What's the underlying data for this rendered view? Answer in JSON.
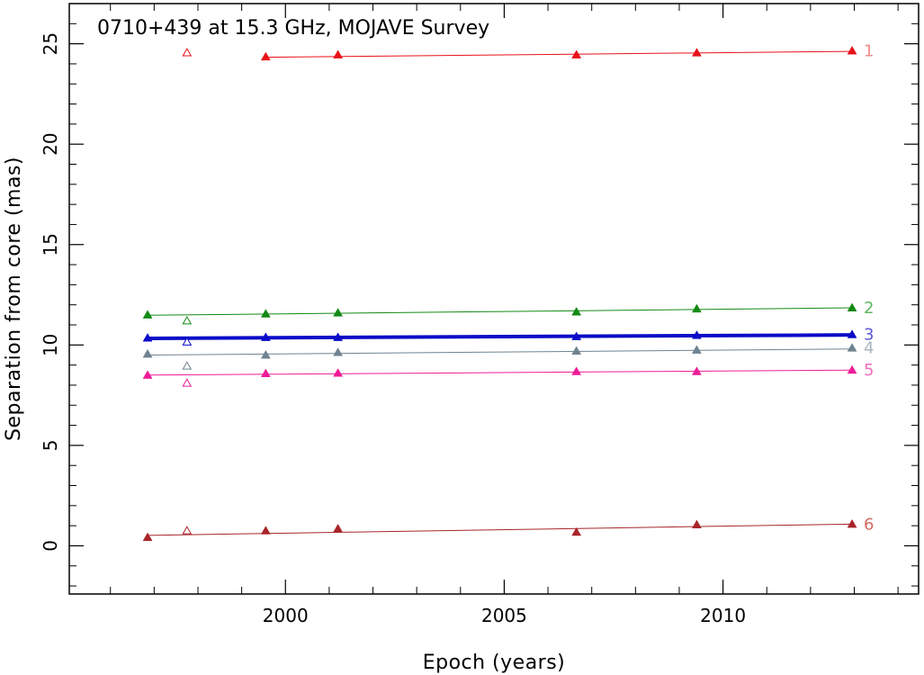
{
  "chart_data": {
    "type": "scatter",
    "title": "0710+439 at 15.3 GHz, MOJAVE Survey",
    "xlabel": "Epoch (years)",
    "ylabel": "Separation from core (mas)",
    "xlim": [
      1995.06,
      2014.47
    ],
    "ylim": [
      -2.4,
      27.0
    ],
    "x_ticks": [
      2000,
      2005,
      2010
    ],
    "y_ticks": [
      0,
      5,
      10,
      15,
      20,
      25
    ],
    "grid": false,
    "series": [
      {
        "name": "1",
        "color": "#e8111a",
        "label_color": "#f28a8a",
        "line_width": 1,
        "points": [
          [
            1999.55,
            24.35
          ],
          [
            2001.2,
            24.45
          ],
          [
            2006.65,
            24.45
          ],
          [
            2009.4,
            24.55
          ],
          [
            2012.95,
            24.65
          ]
        ],
        "open_points": [
          [
            1997.75,
            24.55
          ]
        ],
        "fit": [
          [
            1999.55,
            24.33
          ],
          [
            2012.95,
            24.62
          ]
        ]
      },
      {
        "name": "2",
        "color": "#138a13",
        "label_color": "#5cb85c",
        "line_width": 1,
        "points": [
          [
            1996.85,
            11.5
          ],
          [
            1999.55,
            11.55
          ],
          [
            2001.2,
            11.6
          ],
          [
            2006.65,
            11.65
          ],
          [
            2009.4,
            11.8
          ],
          [
            2012.95,
            11.85
          ]
        ],
        "open_points": [
          [
            1997.75,
            11.2
          ]
        ],
        "fit": [
          [
            1996.85,
            11.48
          ],
          [
            2012.95,
            11.85
          ]
        ]
      },
      {
        "name": "3",
        "color": "#0b0bc8",
        "label_color": "#5a5ad8",
        "line_width": 4,
        "points": [
          [
            1996.85,
            10.35
          ],
          [
            1999.55,
            10.38
          ],
          [
            2001.2,
            10.38
          ],
          [
            2006.65,
            10.42
          ],
          [
            2009.4,
            10.48
          ],
          [
            2012.95,
            10.52
          ]
        ],
        "open_points": [
          [
            1997.75,
            10.15
          ]
        ],
        "fit": [
          [
            1996.85,
            10.33
          ],
          [
            2012.95,
            10.5
          ]
        ]
      },
      {
        "name": "4",
        "color": "#6f8391",
        "label_color": "#a8b4bd",
        "line_width": 1,
        "points": [
          [
            1996.85,
            9.55
          ],
          [
            1999.55,
            9.5
          ],
          [
            2001.2,
            9.63
          ],
          [
            2006.65,
            9.7
          ],
          [
            2009.4,
            9.75
          ],
          [
            2012.95,
            9.85
          ]
        ],
        "open_points": [
          [
            1997.75,
            8.95
          ]
        ],
        "fit": [
          [
            1996.85,
            9.5
          ],
          [
            2012.95,
            9.8
          ]
        ]
      },
      {
        "name": "5",
        "color": "#ee1c98",
        "label_color": "#f06bbd",
        "line_width": 1,
        "points": [
          [
            1996.85,
            8.5
          ],
          [
            1999.55,
            8.58
          ],
          [
            2001.2,
            8.6
          ],
          [
            2006.65,
            8.68
          ],
          [
            2009.4,
            8.68
          ],
          [
            2012.95,
            8.75
          ]
        ],
        "open_points": [
          [
            1997.75,
            8.1
          ]
        ],
        "fit": [
          [
            1996.85,
            8.5
          ],
          [
            2012.95,
            8.75
          ]
        ]
      },
      {
        "name": "6",
        "color": "#a8252a",
        "label_color": "#d06a5f",
        "line_width": 1,
        "points": [
          [
            1996.85,
            0.42
          ],
          [
            1999.55,
            0.75
          ],
          [
            2001.2,
            0.85
          ],
          [
            2006.65,
            0.68
          ],
          [
            2009.4,
            1.05
          ],
          [
            2012.95,
            1.08
          ]
        ],
        "open_points": [
          [
            1997.75,
            0.75
          ]
        ],
        "fit": [
          [
            1996.85,
            0.52
          ],
          [
            2012.95,
            1.08
          ]
        ]
      }
    ]
  }
}
